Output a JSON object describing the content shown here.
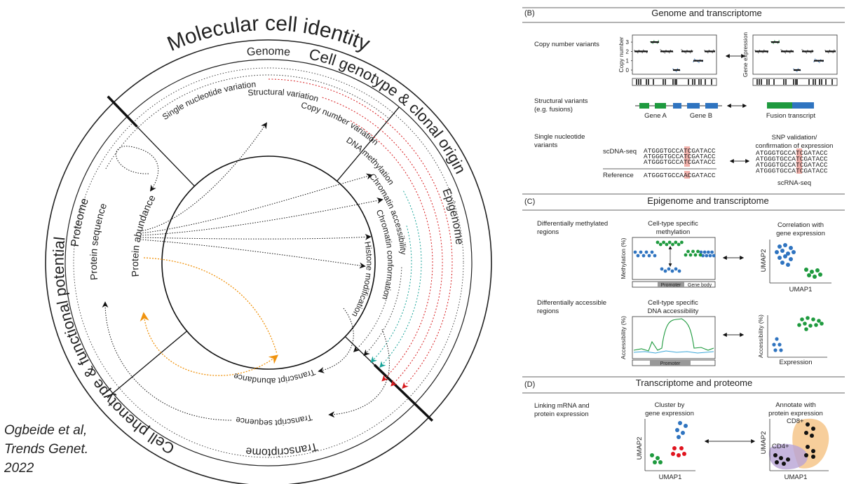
{
  "diagram": {
    "title": "Molecular cell identity",
    "outer_labels": [
      "Cell genotype & clonal origin",
      "Cell phenotype & functional potential"
    ],
    "layers": [
      "Genome",
      "Epigenome",
      "Transcriptome",
      "Proteome"
    ],
    "features": [
      "Single nucleotide variation",
      "Structural variation",
      "Copy number variation",
      "DNA methylation",
      "Chromatin accessibility",
      "Chromatin conformation",
      "Histone modification",
      "Transcript abundance",
      "Transcript sequence",
      "Protein sequence",
      "Protein abundance"
    ]
  },
  "citation": [
    "Ogbeide et al,",
    "Trends Genet.",
    "2022"
  ],
  "panel_b": {
    "label": "(B)",
    "title": "Genome and transcriptome",
    "copy_number": {
      "row_label": "Copy number variants",
      "y_label": "Copy number",
      "yticks": [
        0,
        1,
        2,
        3
      ],
      "y_label_right": "Gene expression"
    },
    "structural": {
      "row_label": [
        "Structural variants",
        "(e.g. fusions)"
      ],
      "genes": [
        "Gene A",
        "Gene B"
      ],
      "fusion": "Fusion transcript"
    },
    "snv": {
      "row_label": [
        "Single nucleotide",
        "variants"
      ],
      "validation": [
        "SNP validation/",
        "confirmation of expression"
      ],
      "dna_label": "scDNA-seq",
      "dna_seqs": [
        "ATGGGTGCCATCGATACC",
        "ATGGGTGCCATCGATACC",
        "ATGGGTGCCATCGATACC"
      ],
      "reference_label": "Reference",
      "reference_seq": "ATGGGTGCCAACGATACC",
      "rna_seqs": [
        "ATGGGTGCCATCGATACC",
        "ATGGGTGCCATCGATACC",
        "ATGGGTGCCATCGATACC",
        "ATGGGTGCCATCGATACC"
      ],
      "rna_label": "scRNA-seq"
    }
  },
  "panel_c": {
    "label": "(C)",
    "title": "Epigenome and transcriptome",
    "methylation": {
      "row_label": [
        "Differentially methylated",
        "regions"
      ],
      "plot_title": [
        "Cell-type specific",
        "methylation"
      ],
      "y_label": "Methylation (%)",
      "regions": [
        "Promoter",
        "Gene body"
      ],
      "right_title": [
        "Correlation with",
        "gene expression"
      ],
      "right_y": "UMAP2",
      "right_x": "UMAP1"
    },
    "accessibility": {
      "row_label": [
        "Differentially accessible",
        "regions"
      ],
      "plot_title": [
        "Cell-type specific",
        "DNA accessibility"
      ],
      "y_label": "Accessibility (%)",
      "region": "Promoter",
      "right_y": "Accessibility (%)",
      "right_x": "Expression"
    }
  },
  "panel_d": {
    "label": "(D)",
    "title": "Transcriptome and proteome",
    "row_label": [
      "Linking mRNA and",
      "protein expression"
    ],
    "left_title": [
      "Cluster by",
      "gene expression"
    ],
    "left_y": "UMAP2",
    "left_x": "UMAP1",
    "right_title": [
      "Annotate with",
      "protein expression"
    ],
    "right_y": "UMAP2",
    "right_x": "UMAP1",
    "groups": [
      "CD8+",
      "CD4+"
    ]
  }
}
